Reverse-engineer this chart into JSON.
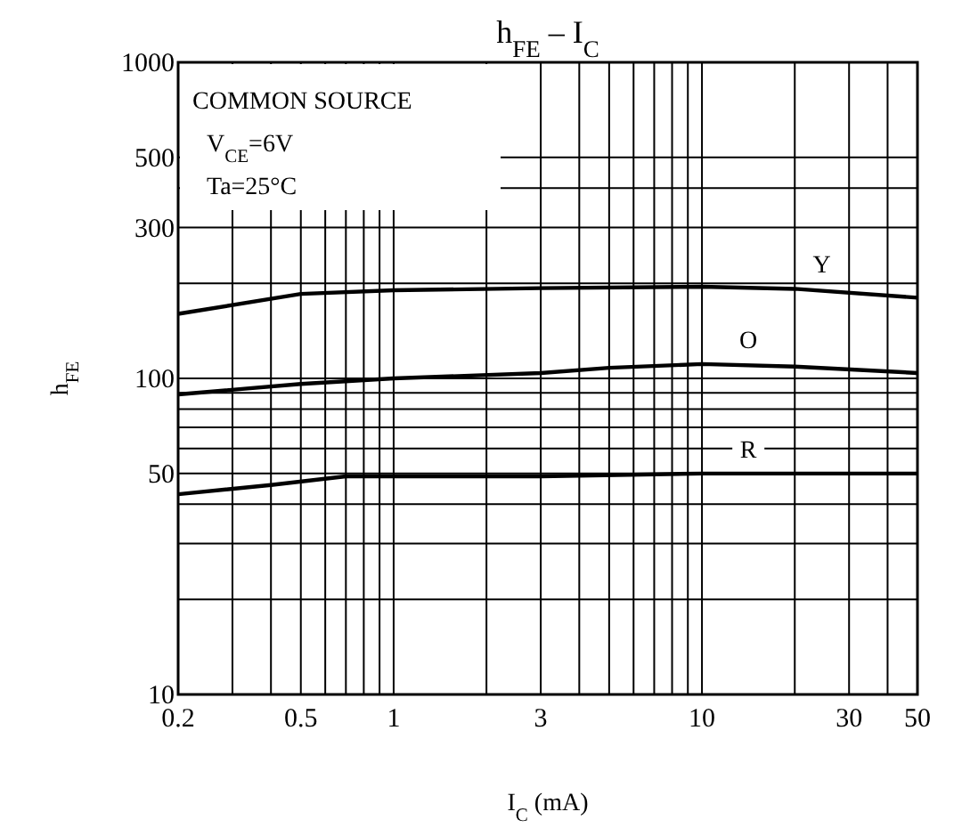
{
  "chart_data": {
    "type": "line",
    "title": "h$_{FE}$ – I$_{C}$",
    "xlabel": "I$_{C}$ (mA)",
    "ylabel": "h$_{FE}$",
    "annotations": [
      "COMMON SOURCE",
      "V$_{CE}$=6V",
      "Ta=25°C"
    ],
    "log": "xy",
    "grid": true,
    "marker": "none",
    "line_style": "solid",
    "xlim": [
      0.2,
      50
    ],
    "ylim": [
      10,
      1000
    ],
    "xticks": [
      0.2,
      {
        "value": 0.3,
        "label": null
      },
      {
        "value": 0.4,
        "label": null
      },
      0.5,
      {
        "value": 0.6,
        "label": null
      },
      {
        "value": 0.7,
        "label": null
      },
      {
        "value": 0.8,
        "label": null
      },
      {
        "value": 0.9,
        "label": null
      },
      1,
      {
        "value": 2,
        "label": null
      },
      3,
      {
        "value": 4,
        "label": null
      },
      {
        "value": 5,
        "label": null
      },
      {
        "value": 6,
        "label": null
      },
      {
        "value": 7,
        "label": null
      },
      {
        "value": 8,
        "label": null
      },
      {
        "value": 9,
        "label": null
      },
      10,
      {
        "value": 20,
        "label": null
      },
      30,
      {
        "value": 40,
        "label": null
      },
      50
    ],
    "yticks": [
      10,
      {
        "value": 20,
        "label": null
      },
      {
        "value": 30,
        "label": null
      },
      {
        "value": 40,
        "label": null
      },
      50,
      {
        "value": 60,
        "label": null
      },
      {
        "value": 70,
        "label": null
      },
      {
        "value": 80,
        "label": null
      },
      {
        "value": 90,
        "label": null
      },
      100,
      {
        "value": 200,
        "label": null
      },
      300,
      {
        "value": 400,
        "label": null
      },
      500,
      1000
    ],
    "series": [
      {
        "name": "Y",
        "color": "#000000",
        "x": [
          0.2,
          0.5,
          1,
          3,
          10,
          20,
          50
        ],
        "values": [
          160,
          185,
          190,
          193,
          195,
          192,
          180
        ]
      },
      {
        "name": "O",
        "color": "#000000",
        "x": [
          0.2,
          0.5,
          1,
          3,
          5,
          10,
          20,
          50
        ],
        "values": [
          89,
          96,
          100,
          104,
          108,
          111,
          109,
          104
        ]
      },
      {
        "name": "R",
        "color": "#000000",
        "x": [
          0.2,
          0.4,
          0.7,
          1,
          3,
          10,
          50
        ],
        "values": [
          43,
          46,
          49,
          49,
          49,
          50,
          50
        ]
      }
    ]
  }
}
